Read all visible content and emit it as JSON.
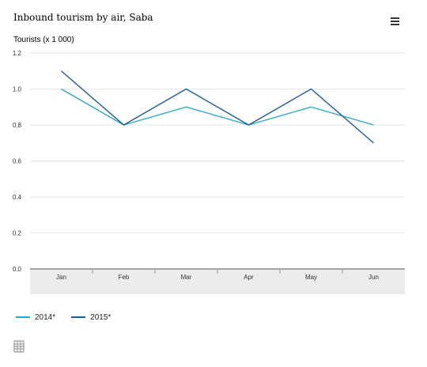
{
  "chart_data": {
    "type": "line",
    "title": "Inbound tourism by air, Saba",
    "ylabel": "Tourists (x 1 000)",
    "xlabel": "",
    "categories": [
      "Jan",
      "Feb",
      "Mar",
      "Apr",
      "May",
      "Jun"
    ],
    "series": [
      {
        "name": "2014*",
        "values": [
          1.0,
          0.8,
          0.9,
          0.8,
          0.9,
          0.8
        ],
        "color": "#2aa6c8"
      },
      {
        "name": "2015*",
        "values": [
          1.1,
          0.8,
          1.0,
          0.8,
          1.0,
          0.7
        ],
        "color": "#1f5b99"
      }
    ],
    "ylim": [
      0,
      1.2
    ],
    "yticks": [
      "0.0",
      "0.2",
      "0.4",
      "0.6",
      "0.8",
      "1.0",
      "1.2"
    ],
    "grid": true,
    "legend": "bottom-left"
  },
  "icons": {
    "menu": "hamburger-menu-icon",
    "export": "spreadsheet-export-icon"
  }
}
